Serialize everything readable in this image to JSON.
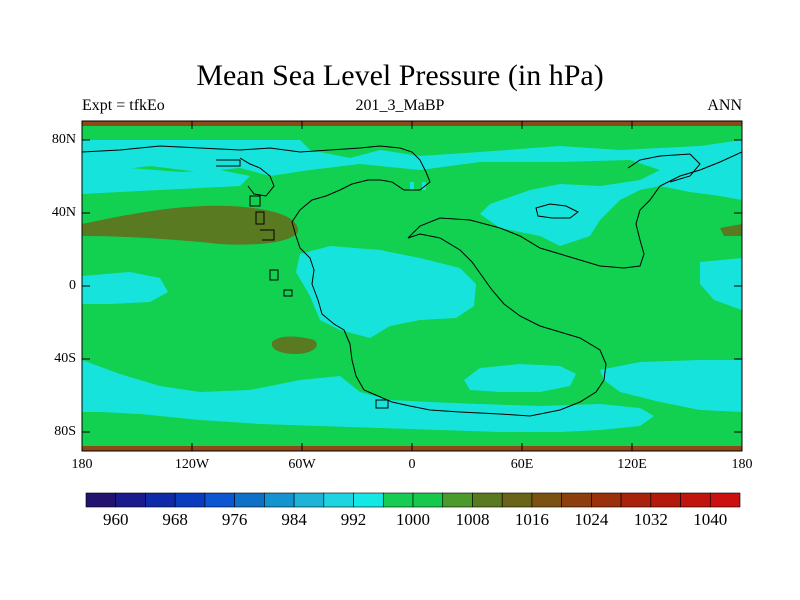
{
  "title": "Mean Sea Level Pressure (in hPa)",
  "subtitle_left": "Expt = tfkEo",
  "subtitle_center": "201_3_MaBP",
  "subtitle_right": "ANN",
  "axes": {
    "x_ticks": [
      "180",
      "120W",
      "60W",
      "0",
      "60E",
      "120E",
      "180"
    ],
    "y_ticks": [
      "80N",
      "40N",
      "0",
      "40S",
      "80S"
    ]
  },
  "colorbar": {
    "labels": [
      "960",
      "968",
      "976",
      "984",
      "992",
      "1000",
      "1008",
      "1016",
      "1024",
      "1032",
      "1040"
    ],
    "colors": [
      "#23126e",
      "#1a1a8c",
      "#0e2aa8",
      "#0a3cbe",
      "#0b56d2",
      "#0f70c8",
      "#1592d0",
      "#1eb4d8",
      "#1ed4e0",
      "#14e8e4",
      "#17cc52",
      "#16c84c",
      "#4a9a2c",
      "#5a7a22",
      "#6a6418",
      "#7a5212",
      "#8c3e0e",
      "#9a300c",
      "#a8220c",
      "#b41a0c",
      "#c0140c",
      "#cc1010"
    ]
  },
  "legend_colors": {
    "ocean_high": "#12d050",
    "low_cyan": "#16e4dc",
    "high_olive": "#5a7a22",
    "frame_brown": "#8c4a18"
  }
}
